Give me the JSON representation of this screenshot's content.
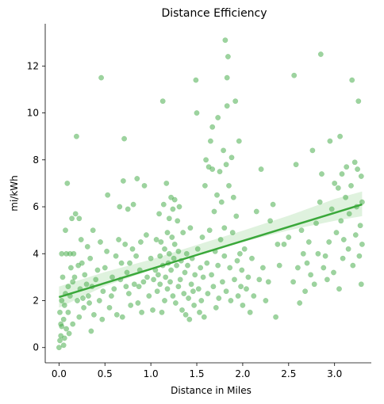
{
  "chart_data": {
    "type": "scatter",
    "title": "Distance Efficiency",
    "xlabel": "Distance in Miles",
    "ylabel": "mi/kWh",
    "xlim": [
      -0.15,
      3.4
    ],
    "ylim": [
      -0.65,
      13.8
    ],
    "xticks": [
      0.0,
      0.5,
      1.0,
      1.5,
      2.0,
      2.5,
      3.0
    ],
    "xtick_labels": [
      "0.0",
      "0.5",
      "1.0",
      "1.5",
      "2.0",
      "2.5",
      "3.0"
    ],
    "yticks": [
      0,
      2,
      4,
      6,
      8,
      10,
      12
    ],
    "ytick_labels": [
      "0",
      "2",
      "4",
      "6",
      "8",
      "10",
      "12"
    ],
    "grid": false,
    "colors": {
      "points": "#4caf50",
      "regression": "#3aa83a",
      "band": "#b9e3b5"
    },
    "regression": {
      "x": [
        0.0,
        3.3
      ],
      "y": [
        2.15,
        6.1
      ]
    },
    "confidence_band": {
      "x": [
        0.0,
        0.5,
        1.0,
        1.5,
        2.0,
        2.5,
        3.0,
        3.3
      ],
      "lower": [
        1.7,
        2.62,
        3.3,
        3.95,
        4.5,
        5.0,
        5.4,
        5.6
      ],
      "upper": [
        2.6,
        3.22,
        3.75,
        4.37,
        4.98,
        5.62,
        6.33,
        6.65
      ]
    },
    "points": [
      [
        0.0,
        0.0
      ],
      [
        0.01,
        0.3
      ],
      [
        0.02,
        0.5
      ],
      [
        0.02,
        1.0
      ],
      [
        0.03,
        0.9
      ],
      [
        0.01,
        1.5
      ],
      [
        0.03,
        2.0
      ],
      [
        0.04,
        3.0
      ],
      [
        0.03,
        4.0
      ],
      [
        0.05,
        0.1
      ],
      [
        0.06,
        0.4
      ],
      [
        0.05,
        1.2
      ],
      [
        0.06,
        1.8
      ],
      [
        0.07,
        2.3
      ],
      [
        0.08,
        0.8
      ],
      [
        0.08,
        4.0
      ],
      [
        0.07,
        5.0
      ],
      [
        0.09,
        7.0
      ],
      [
        0.1,
        2.6
      ],
      [
        0.1,
        1.5
      ],
      [
        0.11,
        0.6
      ],
      [
        0.12,
        2.2
      ],
      [
        0.12,
        4.0
      ],
      [
        0.13,
        3.4
      ],
      [
        0.14,
        5.5
      ],
      [
        0.15,
        1.0
      ],
      [
        0.15,
        2.8
      ],
      [
        0.16,
        4.0
      ],
      [
        0.17,
        3.0
      ],
      [
        0.18,
        5.7
      ],
      [
        0.19,
        9.0
      ],
      [
        0.2,
        2.0
      ],
      [
        0.21,
        3.5
      ],
      [
        0.22,
        1.3
      ],
      [
        0.22,
        5.5
      ],
      [
        0.23,
        2.5
      ],
      [
        0.24,
        4.6
      ],
      [
        0.25,
        3.6
      ],
      [
        0.26,
        2.1
      ],
      [
        0.27,
        1.7
      ],
      [
        0.28,
        3.1
      ],
      [
        0.3,
        2.7
      ],
      [
        0.31,
        4.3
      ],
      [
        0.32,
        2.2
      ],
      [
        0.33,
        1.9
      ],
      [
        0.34,
        3.8
      ],
      [
        0.35,
        0.7
      ],
      [
        0.36,
        2.6
      ],
      [
        0.37,
        5.0
      ],
      [
        0.38,
        1.4
      ],
      [
        0.4,
        2.9
      ],
      [
        0.42,
        3.3
      ],
      [
        0.44,
        2.0
      ],
      [
        0.45,
        4.5
      ],
      [
        0.46,
        11.5
      ],
      [
        0.47,
        1.2
      ],
      [
        0.48,
        2.4
      ],
      [
        0.5,
        3.4
      ],
      [
        0.52,
        4.1
      ],
      [
        0.53,
        6.5
      ],
      [
        0.55,
        1.7
      ],
      [
        0.57,
        2.2
      ],
      [
        0.58,
        3.0
      ],
      [
        0.6,
        2.5
      ],
      [
        0.62,
        3.9
      ],
      [
        0.63,
        1.4
      ],
      [
        0.65,
        4.6
      ],
      [
        0.66,
        6.0
      ],
      [
        0.67,
        2.9
      ],
      [
        0.68,
        3.6
      ],
      [
        0.69,
        1.3
      ],
      [
        0.7,
        7.1
      ],
      [
        0.71,
        8.9
      ],
      [
        0.72,
        4.4
      ],
      [
        0.73,
        2.6
      ],
      [
        0.74,
        3.2
      ],
      [
        0.75,
        5.9
      ],
      [
        0.76,
        2.3
      ],
      [
        0.77,
        3.6
      ],
      [
        0.78,
        1.8
      ],
      [
        0.8,
        4.2
      ],
      [
        0.81,
        6.1
      ],
      [
        0.82,
        2.7
      ],
      [
        0.84,
        3.9
      ],
      [
        0.85,
        7.2
      ],
      [
        0.86,
        1.9
      ],
      [
        0.87,
        2.6
      ],
      [
        0.88,
        3.3
      ],
      [
        0.89,
        4.5
      ],
      [
        0.9,
        1.5
      ],
      [
        0.92,
        2.8
      ],
      [
        0.93,
        6.9
      ],
      [
        0.95,
        4.8
      ],
      [
        0.96,
        3.0
      ],
      [
        0.98,
        2.2
      ],
      [
        1.0,
        3.8
      ],
      [
        1.02,
        1.6
      ],
      [
        1.03,
        2.9
      ],
      [
        1.05,
        3.3
      ],
      [
        1.06,
        4.6
      ],
      [
        1.07,
        2.4
      ],
      [
        1.08,
        3.1
      ],
      [
        1.09,
        5.7
      ],
      [
        1.1,
        2.7
      ],
      [
        1.1,
        3.9
      ],
      [
        1.11,
        4.5
      ],
      [
        1.12,
        1.5
      ],
      [
        1.13,
        10.5
      ],
      [
        1.13,
        3.5
      ],
      [
        1.14,
        6.1
      ],
      [
        1.15,
        4.2
      ],
      [
        1.15,
        2.0
      ],
      [
        1.16,
        3.0
      ],
      [
        1.17,
        7.0
      ],
      [
        1.18,
        4.9
      ],
      [
        1.18,
        2.5
      ],
      [
        1.19,
        3.6
      ],
      [
        1.2,
        5.5
      ],
      [
        1.2,
        4.0
      ],
      [
        1.21,
        2.8
      ],
      [
        1.22,
        6.4
      ],
      [
        1.22,
        3.3
      ],
      [
        1.23,
        4.7
      ],
      [
        1.24,
        5.9
      ],
      [
        1.24,
        2.2
      ],
      [
        1.25,
        3.8
      ],
      [
        1.26,
        6.3
      ],
      [
        1.26,
        4.4
      ],
      [
        1.27,
        1.9
      ],
      [
        1.28,
        3.5
      ],
      [
        1.29,
        5.4
      ],
      [
        1.3,
        2.6
      ],
      [
        1.3,
        4.1
      ],
      [
        1.31,
        6.0
      ],
      [
        1.32,
        2.9
      ],
      [
        1.33,
        3.7
      ],
      [
        1.34,
        1.6
      ],
      [
        1.35,
        4.9
      ],
      [
        1.36,
        2.3
      ],
      [
        1.37,
        3.2
      ],
      [
        1.38,
        1.4
      ],
      [
        1.39,
        4.0
      ],
      [
        1.4,
        3.5
      ],
      [
        1.41,
        2.1
      ],
      [
        1.42,
        1.2
      ],
      [
        1.43,
        5.1
      ],
      [
        1.44,
        2.7
      ],
      [
        1.45,
        3.8
      ],
      [
        1.46,
        2.4
      ],
      [
        1.47,
        1.8
      ],
      [
        1.48,
        3.1
      ],
      [
        1.49,
        11.4
      ],
      [
        1.5,
        10.0
      ],
      [
        1.51,
        4.2
      ],
      [
        1.52,
        2.5
      ],
      [
        1.53,
        1.5
      ],
      [
        1.54,
        3.4
      ],
      [
        1.55,
        2.0
      ],
      [
        1.56,
        4.7
      ],
      [
        1.57,
        3.0
      ],
      [
        1.58,
        1.3
      ],
      [
        1.59,
        6.9
      ],
      [
        1.6,
        8.0
      ],
      [
        1.61,
        3.6
      ],
      [
        1.62,
        2.3
      ],
      [
        1.63,
        7.7
      ],
      [
        1.64,
        5.0
      ],
      [
        1.65,
        8.8
      ],
      [
        1.66,
        3.1
      ],
      [
        1.67,
        9.4
      ],
      [
        1.67,
        7.6
      ],
      [
        1.68,
        2.6
      ],
      [
        1.69,
        5.8
      ],
      [
        1.7,
        4.1
      ],
      [
        1.71,
        1.7
      ],
      [
        1.72,
        6.5
      ],
      [
        1.73,
        9.8
      ],
      [
        1.73,
        3.5
      ],
      [
        1.74,
        2.1
      ],
      [
        1.75,
        7.5
      ],
      [
        1.76,
        4.6
      ],
      [
        1.77,
        6.2
      ],
      [
        1.78,
        2.8
      ],
      [
        1.79,
        8.4
      ],
      [
        1.8,
        3.9
      ],
      [
        1.8,
        5.1
      ],
      [
        1.81,
        13.1
      ],
      [
        1.82,
        7.8
      ],
      [
        1.82,
        2.4
      ],
      [
        1.83,
        10.3
      ],
      [
        1.83,
        11.5
      ],
      [
        1.84,
        12.4
      ],
      [
        1.85,
        6.9
      ],
      [
        1.86,
        3.4
      ],
      [
        1.87,
        2.0
      ],
      [
        1.88,
        8.1
      ],
      [
        1.89,
        4.9
      ],
      [
        1.9,
        6.4
      ],
      [
        1.91,
        2.9
      ],
      [
        1.92,
        10.5
      ],
      [
        1.93,
        5.6
      ],
      [
        1.94,
        3.7
      ],
      [
        1.95,
        2.2
      ],
      [
        1.96,
        8.8
      ],
      [
        1.97,
        4.0
      ],
      [
        1.98,
        2.6
      ],
      [
        1.99,
        3.3
      ],
      [
        2.0,
        1.8
      ],
      [
        2.02,
        4.2
      ],
      [
        2.04,
        2.5
      ],
      [
        2.06,
        3.0
      ],
      [
        2.08,
        1.5
      ],
      [
        2.1,
        3.8
      ],
      [
        2.12,
        2.2
      ],
      [
        2.15,
        5.8
      ],
      [
        2.18,
        2.9
      ],
      [
        2.2,
        7.6
      ],
      [
        2.22,
        3.4
      ],
      [
        2.25,
        2.0
      ],
      [
        2.28,
        2.8
      ],
      [
        2.3,
        5.4
      ],
      [
        2.33,
        6.1
      ],
      [
        2.36,
        1.3
      ],
      [
        2.38,
        4.4
      ],
      [
        2.4,
        3.5
      ],
      [
        2.45,
        4.4
      ],
      [
        2.5,
        4.7
      ],
      [
        2.55,
        2.8
      ],
      [
        2.56,
        11.6
      ],
      [
        2.58,
        7.8
      ],
      [
        2.6,
        3.4
      ],
      [
        2.62,
        1.9
      ],
      [
        2.64,
        5.0
      ],
      [
        2.66,
        4.0
      ],
      [
        2.68,
        2.4
      ],
      [
        2.7,
        3.6
      ],
      [
        2.72,
        4.5
      ],
      [
        2.74,
        3.1
      ],
      [
        2.76,
        8.4
      ],
      [
        2.78,
        2.7
      ],
      [
        2.8,
        5.3
      ],
      [
        2.82,
        4.0
      ],
      [
        2.84,
        6.2
      ],
      [
        2.85,
        12.5
      ],
      [
        2.86,
        7.4
      ],
      [
        2.88,
        3.4
      ],
      [
        2.9,
        3.9
      ],
      [
        2.92,
        2.9
      ],
      [
        2.94,
        4.5
      ],
      [
        2.95,
        8.8
      ],
      [
        2.97,
        5.9
      ],
      [
        2.99,
        3.2
      ],
      [
        3.0,
        7.0
      ],
      [
        3.02,
        4.9
      ],
      [
        3.04,
        6.8
      ],
      [
        3.05,
        2.5
      ],
      [
        3.06,
        9.0
      ],
      [
        3.07,
        5.4
      ],
      [
        3.08,
        7.4
      ],
      [
        3.09,
        3.8
      ],
      [
        3.1,
        4.6
      ],
      [
        3.12,
        6.4
      ],
      [
        3.13,
        7.7
      ],
      [
        3.15,
        4.2
      ],
      [
        3.16,
        5.7
      ],
      [
        3.18,
        6.9
      ],
      [
        3.19,
        11.4
      ],
      [
        3.2,
        3.5
      ],
      [
        3.22,
        7.9
      ],
      [
        3.23,
        4.8
      ],
      [
        3.24,
        6.0
      ],
      [
        3.25,
        7.6
      ],
      [
        3.26,
        10.5
      ],
      [
        3.27,
        3.9
      ],
      [
        3.28,
        5.2
      ],
      [
        3.29,
        2.7
      ],
      [
        3.29,
        7.3
      ],
      [
        3.3,
        6.2
      ],
      [
        3.3,
        4.4
      ]
    ]
  }
}
